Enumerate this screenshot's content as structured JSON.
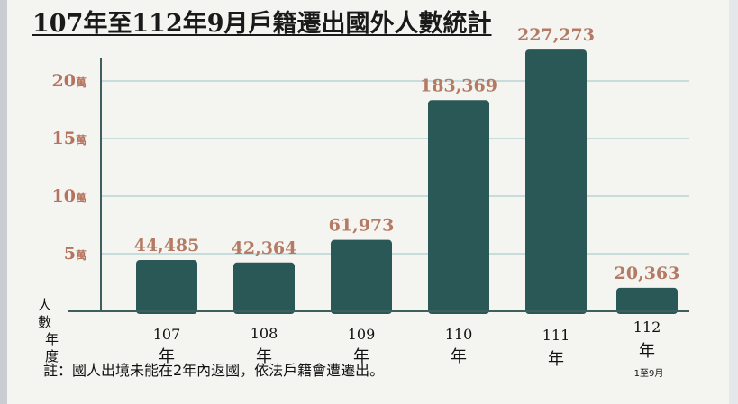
{
  "title": "107年至112年9月戶籍遷出國外人數統計",
  "note": "註：國人出境未能在2年內返國，依法戶籍會遭遷出。",
  "colors": {
    "bar": "#2a5856",
    "axis": "#3f5f5d",
    "grid": "#c9dcdc",
    "value_label": "#b57a63",
    "tick_label": "#b5735e",
    "text": "#111111"
  },
  "chart_data": {
    "type": "bar",
    "title": "107年至112年9月戶籍遷出國外人數統計",
    "ylabel": "人數",
    "xlabel": "年度",
    "categories": [
      "107年",
      "108年",
      "109年",
      "110年",
      "111年",
      "112年"
    ],
    "category_notes": [
      "",
      "",
      "",
      "",
      "",
      "1至9月"
    ],
    "values": [
      44485,
      42364,
      61973,
      183369,
      227273,
      20363
    ],
    "value_labels": [
      "44,485",
      "42,364",
      "61,973",
      "183,369",
      "227,273",
      "20,363"
    ],
    "yticks": [
      {
        "value": 50000,
        "num": "5",
        "unit": "萬"
      },
      {
        "value": 100000,
        "num": "10",
        "unit": "萬"
      },
      {
        "value": 150000,
        "num": "15",
        "unit": "萬"
      },
      {
        "value": 200000,
        "num": "20",
        "unit": "萬"
      }
    ],
    "ylim": [
      0,
      230000
    ],
    "grid": true
  }
}
